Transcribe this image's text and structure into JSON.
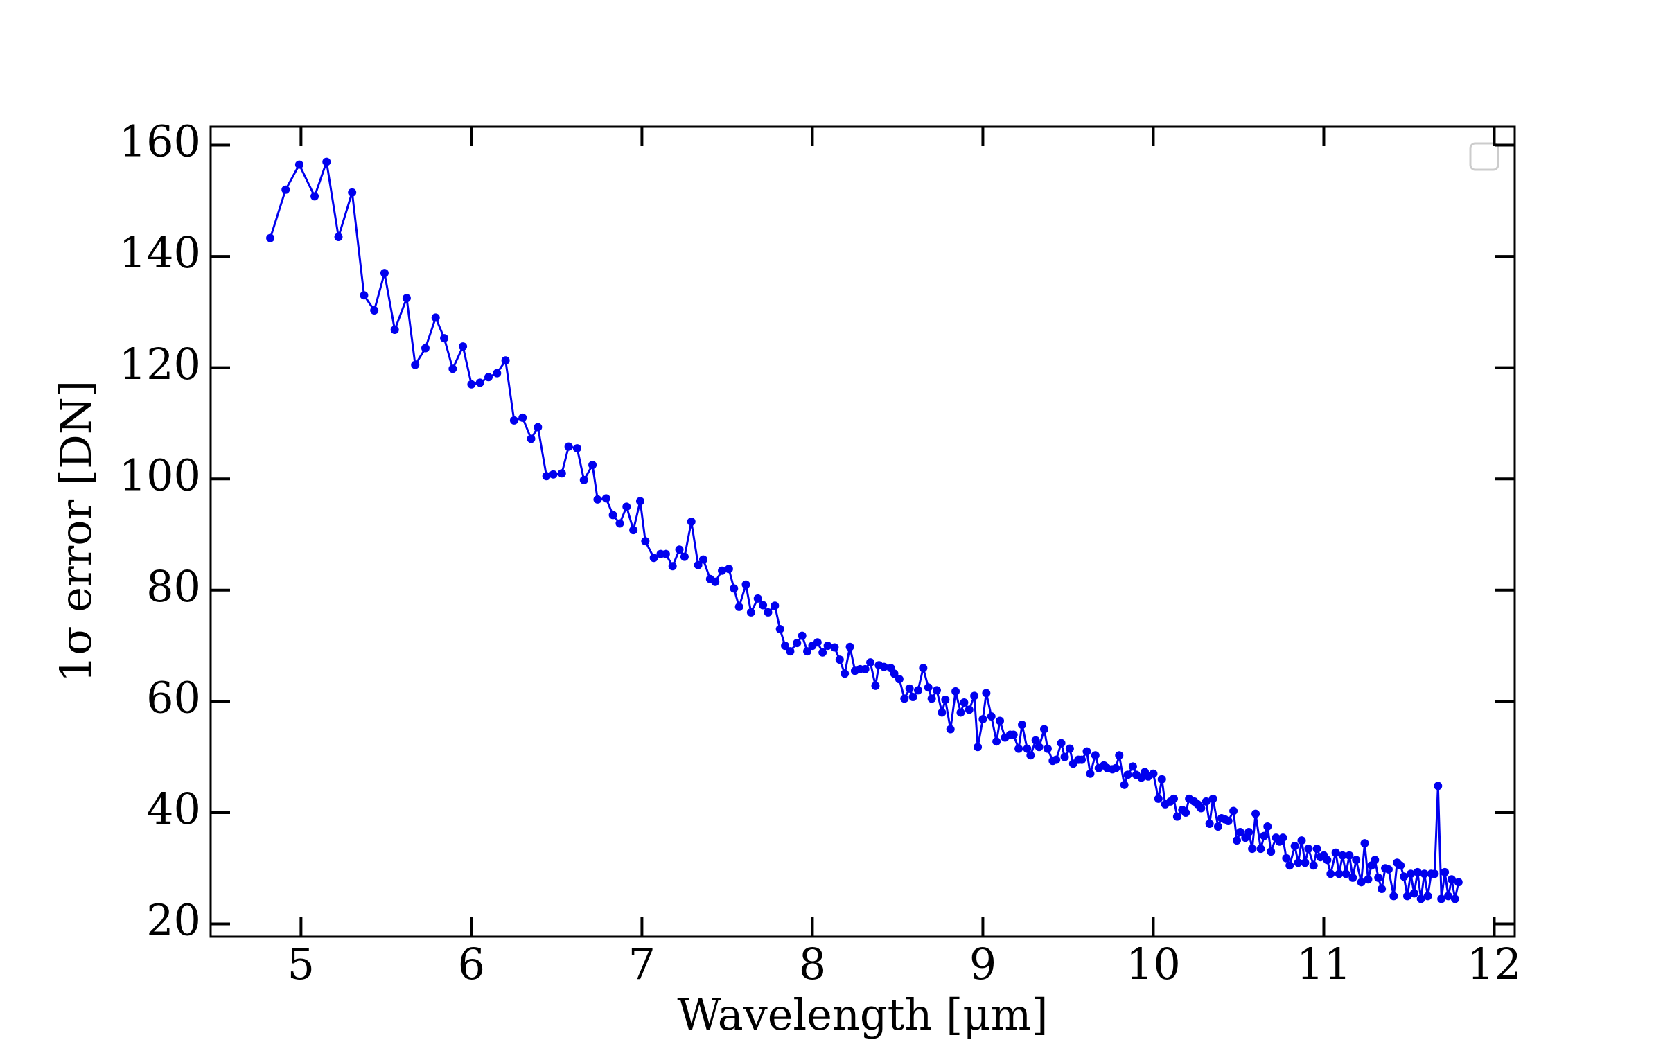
{
  "chart_data": {
    "type": "line",
    "xlabel": "Wavelength [μm]",
    "ylabel": "1σ error [DN]",
    "color": "#0000ee",
    "xlim": [
      4.47,
      12.12
    ],
    "ylim": [
      17.7,
      163.3
    ],
    "xticks": [
      5,
      6,
      7,
      8,
      9,
      10,
      11,
      12
    ],
    "yticks": [
      20,
      40,
      60,
      80,
      100,
      120,
      140,
      160
    ],
    "x": [
      4.82,
      4.91,
      4.99,
      5.08,
      5.15,
      5.22,
      5.3,
      5.37,
      5.43,
      5.49,
      5.55,
      5.62,
      5.67,
      5.73,
      5.79,
      5.84,
      5.89,
      5.95,
      6.0,
      6.05,
      6.1,
      6.15,
      6.2,
      6.25,
      6.3,
      6.35,
      6.39,
      6.44,
      6.48,
      6.53,
      6.57,
      6.62,
      6.66,
      6.71,
      6.74,
      6.79,
      6.83,
      6.87,
      6.91,
      6.95,
      6.99,
      7.02,
      7.07,
      7.11,
      7.14,
      7.18,
      7.22,
      7.25,
      7.29,
      7.33,
      7.36,
      7.4,
      7.43,
      7.47,
      7.51,
      7.54,
      7.57,
      7.61,
      7.64,
      7.68,
      7.71,
      7.74,
      7.78,
      7.81,
      7.84,
      7.87,
      7.91,
      7.94,
      7.97,
      8.0,
      8.03,
      8.06,
      8.09,
      8.13,
      8.16,
      8.19,
      8.22,
      8.25,
      8.28,
      8.31,
      8.34,
      8.37,
      8.39,
      8.42,
      8.46,
      8.48,
      8.51,
      8.54,
      8.57,
      8.59,
      8.62,
      8.65,
      8.68,
      8.7,
      8.73,
      8.76,
      8.78,
      8.81,
      8.84,
      8.87,
      8.89,
      8.92,
      8.95,
      8.97,
      9.0,
      9.02,
      9.05,
      9.08,
      9.1,
      9.13,
      9.16,
      9.18,
      9.21,
      9.23,
      9.26,
      9.28,
      9.31,
      9.33,
      9.36,
      9.38,
      9.41,
      9.43,
      9.46,
      9.48,
      9.51,
      9.53,
      9.56,
      9.58,
      9.61,
      9.63,
      9.66,
      9.68,
      9.71,
      9.73,
      9.76,
      9.78,
      9.8,
      9.83,
      9.85,
      9.88,
      9.9,
      9.93,
      9.95,
      9.97,
      10.0,
      10.03,
      10.05,
      10.07,
      10.1,
      10.12,
      10.14,
      10.17,
      10.19,
      10.21,
      10.24,
      10.26,
      10.28,
      10.31,
      10.33,
      10.35,
      10.38,
      10.4,
      10.42,
      10.44,
      10.47,
      10.49,
      10.51,
      10.54,
      10.56,
      10.58,
      10.6,
      10.63,
      10.65,
      10.67,
      10.69,
      10.72,
      10.74,
      10.76,
      10.78,
      10.8,
      10.83,
      10.85,
      10.87,
      10.89,
      10.91,
      10.94,
      10.96,
      10.98,
      11.0,
      11.02,
      11.04,
      11.07,
      11.09,
      11.11,
      11.13,
      11.15,
      11.17,
      11.19,
      11.22,
      11.24,
      11.26,
      11.28,
      11.3,
      11.32,
      11.34,
      11.36,
      11.38,
      11.41,
      11.43,
      11.45,
      11.47,
      11.49,
      11.51,
      11.53,
      11.55,
      11.57,
      11.59,
      11.61,
      11.63,
      11.65,
      11.67,
      11.69,
      11.71,
      11.73,
      11.75,
      11.77,
      11.79
    ],
    "values": [
      143.3,
      152,
      156.5,
      150.8,
      157,
      143.5,
      151.5,
      133,
      130.3,
      137,
      126.8,
      132.5,
      120.5,
      123.5,
      129,
      125.3,
      119.8,
      123.8,
      117,
      117.3,
      118.3,
      119,
      121.3,
      110.5,
      111,
      107.2,
      109.3,
      100.5,
      100.8,
      101,
      105.8,
      105.5,
      99.8,
      102.5,
      96.3,
      96.5,
      93.5,
      92,
      95,
      90.8,
      96,
      88.8,
      85.8,
      86.5,
      86.5,
      84.3,
      87.3,
      86,
      92.3,
      84.5,
      85.5,
      82,
      81.5,
      83.5,
      83.8,
      80.3,
      77,
      81,
      76,
      78.5,
      77.3,
      76,
      77.2,
      73,
      70,
      69,
      70.5,
      71.8,
      69,
      70,
      70.6,
      68.8,
      70,
      69.7,
      67.5,
      65,
      69.8,
      65.5,
      65.8,
      65.8,
      67,
      62.8,
      66.5,
      66.2,
      66,
      65,
      64,
      60.5,
      62.3,
      60.8,
      62,
      66,
      62.5,
      60.5,
      62,
      58,
      60.3,
      55,
      61.8,
      58,
      59.8,
      58.5,
      61,
      51.8,
      56.8,
      61.5,
      57.3,
      52.8,
      56.5,
      53.5,
      54,
      54,
      51.5,
      55.8,
      51.5,
      50.3,
      53,
      51.8,
      55,
      51.5,
      49.3,
      49.5,
      52.5,
      50,
      51.5,
      48.8,
      49.5,
      49.5,
      51,
      47,
      50.3,
      48,
      48.5,
      48,
      47.8,
      48,
      50.3,
      45,
      46.8,
      48.3,
      46.8,
      46.3,
      47.3,
      46.5,
      47,
      42.5,
      46,
      41.5,
      42,
      42.5,
      39.3,
      40.5,
      40,
      42.5,
      42,
      41.5,
      40.8,
      42,
      38,
      42.5,
      37.5,
      39,
      38.8,
      38.5,
      40.3,
      35,
      36.5,
      35.5,
      36.5,
      33.5,
      39.8,
      33.5,
      35.8,
      37.5,
      33,
      35.5,
      34.8,
      35.5,
      31.8,
      30.5,
      34,
      31,
      35,
      31,
      33.5,
      30.5,
      33.5,
      32,
      32.3,
      31.5,
      29,
      32.8,
      29,
      32.3,
      29,
      32.3,
      28.3,
      31.5,
      27.5,
      34.5,
      28,
      30.5,
      31.5,
      28.3,
      26.3,
      30,
      29.8,
      25,
      31,
      30.5,
      28.5,
      25,
      29,
      25.5,
      29.3,
      24.5,
      29,
      25,
      29,
      29,
      44.8,
      24.5,
      29.3,
      25,
      28,
      24.5,
      27.5
    ]
  }
}
